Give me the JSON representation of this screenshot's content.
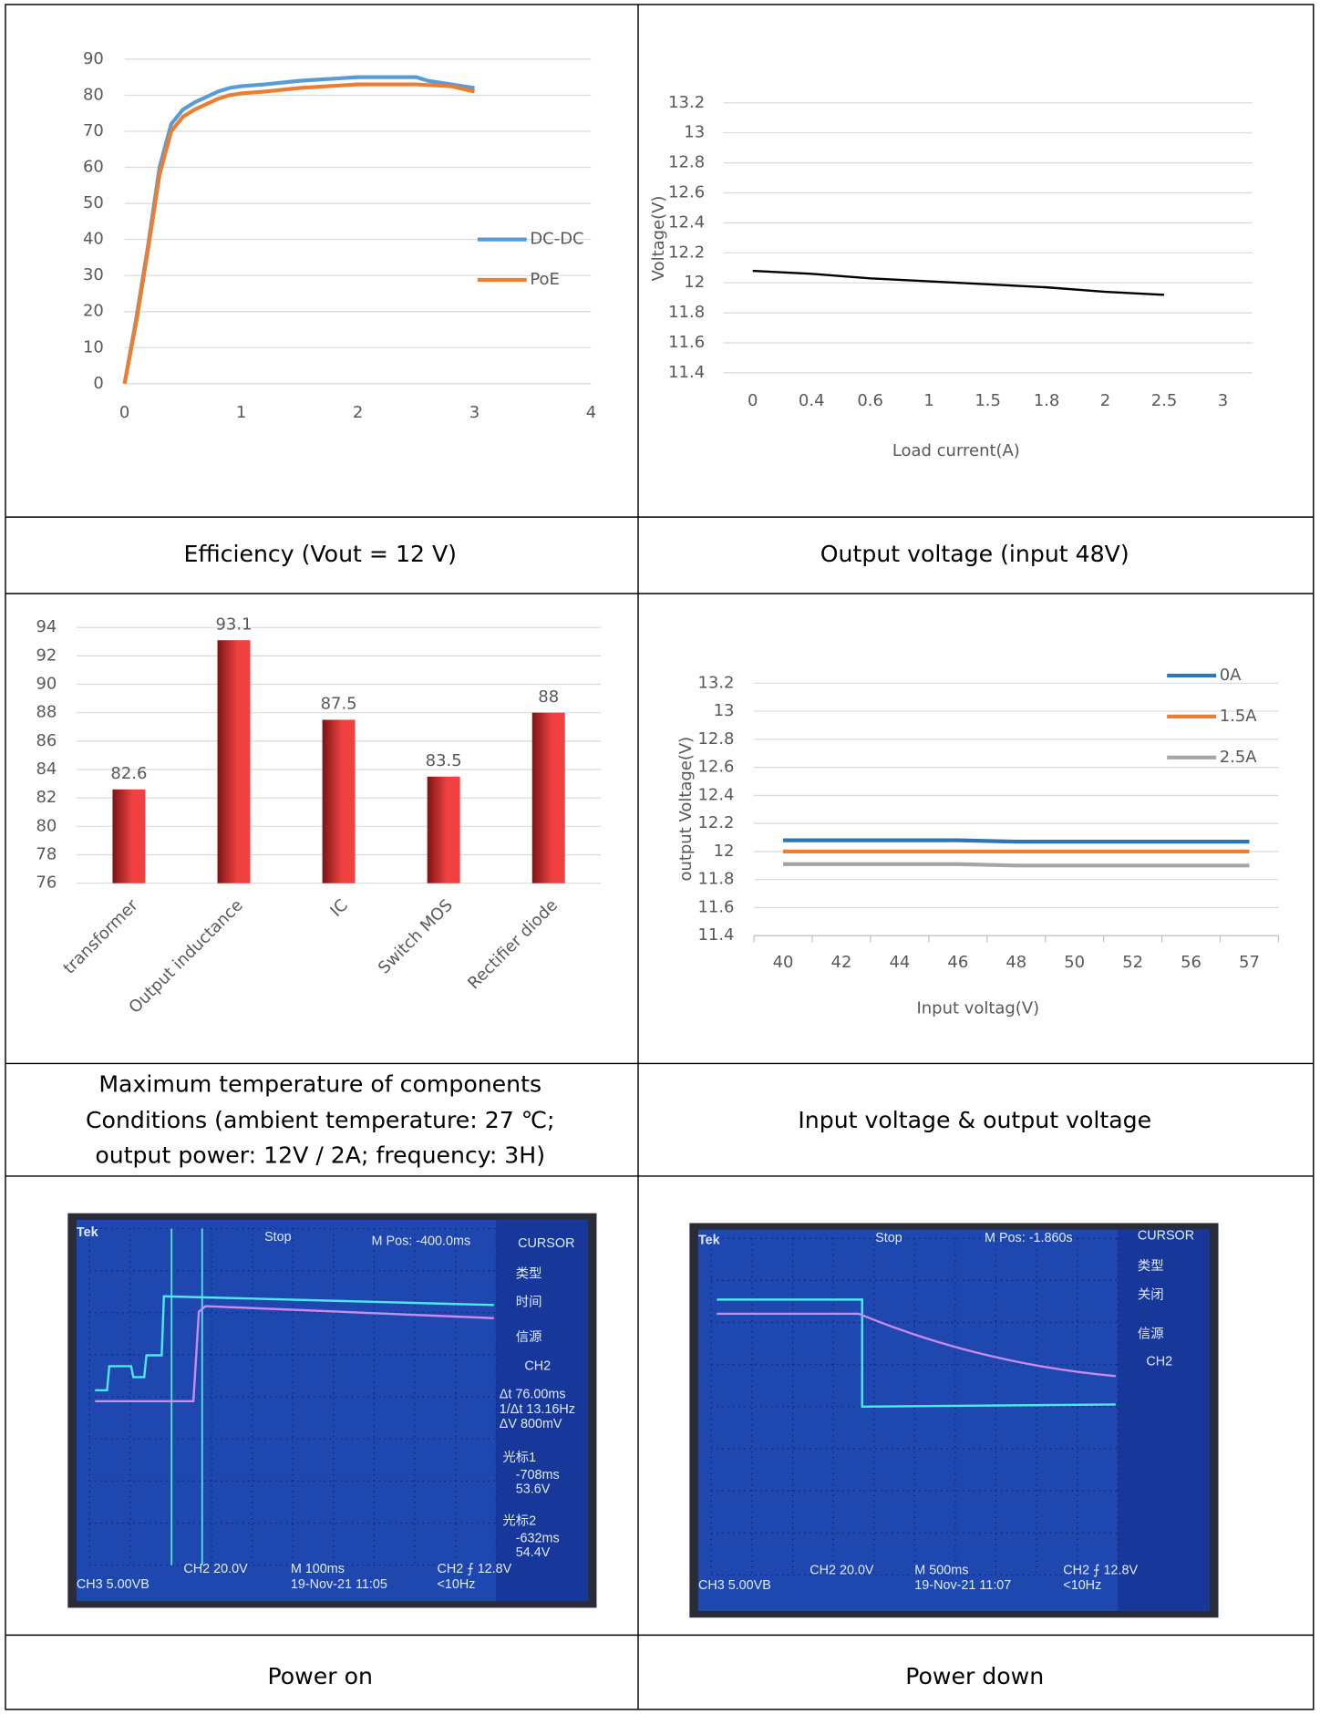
{
  "chart_data": [
    {
      "type": "line",
      "x_numeric": true,
      "xlim": [
        0,
        4
      ],
      "xticks": [
        0,
        1,
        2,
        3,
        4
      ],
      "ylim": [
        0,
        90
      ],
      "yticks": [
        0,
        10,
        20,
        30,
        40,
        50,
        60,
        70,
        80,
        90
      ],
      "grid": true,
      "legend": "right",
      "series": [
        {
          "name": "DC-DC",
          "color": "#5b9bd5",
          "x": [
            0,
            0.1,
            0.2,
            0.3,
            0.4,
            0.5,
            0.6,
            0.8,
            0.9,
            1,
            1.2,
            1.5,
            2,
            2.5,
            2.6,
            3
          ],
          "values": [
            0,
            18,
            38,
            60,
            72,
            76,
            78,
            81,
            82,
            82.5,
            83,
            84,
            85,
            85,
            84,
            82
          ]
        },
        {
          "name": "PoE",
          "color": "#ed7d31",
          "x": [
            0,
            0.1,
            0.2,
            0.3,
            0.4,
            0.5,
            0.6,
            0.8,
            0.9,
            1,
            1.2,
            1.5,
            2,
            2.5,
            2.8,
            3
          ],
          "values": [
            0,
            17,
            37,
            58,
            70,
            74,
            76,
            79,
            80,
            80.5,
            81,
            82,
            83,
            83,
            82.5,
            81
          ]
        }
      ]
    },
    {
      "type": "line",
      "ylabel": "Voltage(V)",
      "xlabel": "Load current(A)",
      "categories": [
        "0",
        "0.4",
        "0.6",
        "1",
        "1.5",
        "1.8",
        "2",
        "2.5",
        "3"
      ],
      "ylim": [
        11.4,
        13.2
      ],
      "yticks": [
        11.4,
        11.6,
        11.8,
        12,
        12.2,
        12.4,
        12.6,
        12.8,
        13,
        13.2
      ],
      "grid": true,
      "series": [
        {
          "color": "#000000",
          "values": [
            12.08,
            12.06,
            12.03,
            12.01,
            11.99,
            11.97,
            11.94,
            11.92,
            null
          ]
        }
      ]
    },
    {
      "type": "bar",
      "categories": [
        "transformer",
        "Output inductance",
        "IC",
        "Switch MOS",
        "Rectifier diode"
      ],
      "values": [
        82.6,
        93.1,
        87.5,
        83.5,
        88
      ],
      "color": "#f04040",
      "ylim": [
        76,
        94
      ],
      "yticks": [
        76,
        78,
        80,
        82,
        84,
        86,
        88,
        90,
        92,
        94
      ],
      "grid": true
    },
    {
      "type": "line",
      "ylabel": "output Voltage(V)",
      "xlabel": "Input voltag(V)",
      "categories": [
        "40",
        "42",
        "44",
        "46",
        "48",
        "50",
        "52",
        "56",
        "57"
      ],
      "ylim": [
        11.4,
        13.2
      ],
      "yticks": [
        11.4,
        11.6,
        11.8,
        12,
        12.2,
        12.4,
        12.6,
        12.8,
        13,
        13.2
      ],
      "grid": true,
      "legend": "upper right",
      "series": [
        {
          "name": "0A",
          "color": "#2e75b6",
          "values": [
            12.08,
            12.08,
            12.08,
            12.08,
            12.07,
            12.07,
            12.07,
            12.07,
            12.07
          ]
        },
        {
          "name": "1.5A",
          "color": "#ed7d31",
          "values": [
            12,
            12,
            12,
            12,
            12,
            12,
            12,
            12,
            12
          ]
        },
        {
          "name": "2.5A",
          "color": "#a5a5a5",
          "values": [
            11.91,
            11.91,
            11.91,
            11.91,
            11.9,
            11.9,
            11.9,
            11.9,
            11.9
          ]
        }
      ]
    }
  ],
  "captions": [
    [
      "Efficiency (Vout = 12 V)"
    ],
    [
      "Output voltage (input 48V)"
    ],
    [
      "Maximum temperature of components",
      "Conditions (ambient temperature: 27 ℃;",
      "output power: 12V / 2A; frequency: 3H)"
    ],
    [
      "Input voltage & output voltage"
    ],
    [
      "Power on"
    ],
    [
      "Power down"
    ]
  ],
  "scopes": [
    {
      "texts": [
        "Tek",
        "Stop",
        "M Pos: -400.0ms",
        "CURSOR",
        "类型",
        "时间",
        "信源",
        "CH2",
        "Δt 76.00ms",
        "1/Δt 13.16Hz",
        "ΔV 800mV",
        "光标1",
        "-708ms",
        "53.6V",
        "光标2",
        "-632ms",
        "54.4V",
        "CH2  20.0V",
        "M 100ms",
        "CH2 ⨍ 12.8V",
        "CH3  5.00VB",
        "19-Nov-21 11:05",
        "<10Hz"
      ]
    },
    {
      "texts": [
        "Tek",
        "Stop",
        "M Pos: -1.860s",
        "CURSOR",
        "类型",
        "关闭",
        "信源",
        "CH2",
        "CH2  20.0V",
        "M 500ms",
        "CH2 ⨍ 12.8V",
        "CH3  5.00VB",
        "19-Nov-21 11:07",
        "<10Hz"
      ]
    }
  ]
}
